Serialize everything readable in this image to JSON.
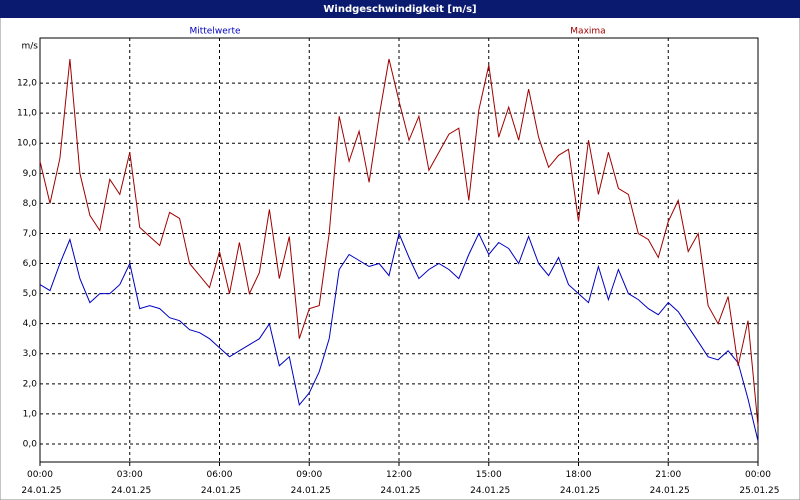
{
  "chart_data": {
    "type": "line",
    "title": "Windgeschwindigkeit [m/s]",
    "ylabel": "m/s",
    "x": [
      0,
      20,
      40,
      60,
      80,
      100,
      120,
      140,
      160,
      180,
      200,
      220,
      240,
      260,
      280,
      300,
      320,
      340,
      360,
      380,
      400,
      420,
      440,
      460,
      480,
      500,
      520,
      540,
      560,
      580,
      600,
      620,
      640,
      660,
      680,
      700,
      720,
      740,
      760,
      780,
      800,
      820,
      840,
      860,
      880,
      900,
      920,
      940,
      960,
      980,
      1000,
      1020,
      1040,
      1060,
      1080,
      1100,
      1120,
      1140,
      1160,
      1180,
      1200,
      1220,
      1240,
      1260,
      1280,
      1300,
      1320,
      1340,
      1360,
      1380,
      1400,
      1420,
      1440
    ],
    "series": [
      {
        "name": "Mittelwerte",
        "color": "#0000c0",
        "values": [
          5.3,
          5.1,
          6.0,
          6.8,
          5.5,
          4.7,
          5.0,
          5.0,
          5.3,
          6.0,
          4.5,
          4.6,
          4.5,
          4.2,
          4.1,
          3.8,
          3.7,
          3.5,
          3.2,
          2.9,
          3.1,
          3.3,
          3.5,
          4.0,
          2.6,
          2.9,
          1.3,
          1.7,
          2.4,
          3.5,
          5.8,
          6.3,
          6.1,
          5.9,
          6.0,
          5.6,
          7.0,
          6.2,
          5.5,
          5.8,
          6.0,
          5.8,
          5.5,
          6.3,
          7.0,
          6.3,
          6.7,
          6.5,
          6.0,
          6.9,
          6.0,
          5.6,
          6.2,
          5.3,
          5.0,
          4.7,
          5.9,
          4.8,
          5.8,
          5.0,
          4.8,
          4.5,
          4.3,
          4.7,
          4.4,
          3.9,
          3.4,
          2.9,
          2.8,
          3.1,
          2.7,
          1.5,
          0.1
        ]
      },
      {
        "name": "Maxima",
        "color": "#a00000",
        "values": [
          9.4,
          8.0,
          9.5,
          12.8,
          9.0,
          7.6,
          7.1,
          8.8,
          8.3,
          9.7,
          7.2,
          6.9,
          6.6,
          7.7,
          7.5,
          6.0,
          5.6,
          5.2,
          6.4,
          5.0,
          6.7,
          5.0,
          5.7,
          7.8,
          5.5,
          6.9,
          3.5,
          4.5,
          4.6,
          7.0,
          10.9,
          9.4,
          10.4,
          8.7,
          10.9,
          12.8,
          11.4,
          10.1,
          10.9,
          9.1,
          9.7,
          10.3,
          10.5,
          8.1,
          11.1,
          12.6,
          10.2,
          11.2,
          10.1,
          11.8,
          10.2,
          9.2,
          9.6,
          9.8,
          7.4,
          10.1,
          8.3,
          9.7,
          8.5,
          8.3,
          7.0,
          6.8,
          6.2,
          7.4,
          8.1,
          6.4,
          7.0,
          4.6,
          4.0,
          4.9,
          2.6,
          4.1,
          0.6
        ]
      }
    ],
    "xlim": [
      0,
      1440
    ],
    "xticks": [
      {
        "value": 0,
        "label": "00:00 24.01.25"
      },
      {
        "value": 180,
        "label": "03:00 24.01.25"
      },
      {
        "value": 360,
        "label": "06:00 24.01.25"
      },
      {
        "value": 540,
        "label": "09:00 24.01.25"
      },
      {
        "value": 720,
        "label": "12:00 24.01.25"
      },
      {
        "value": 900,
        "label": "15:00 24.01.25"
      },
      {
        "value": 1080,
        "label": "18:00 24.01.25"
      },
      {
        "value": 1260,
        "label": "21:00 24.01.25"
      },
      {
        "value": 1440,
        "label": "00:00 25.01.25"
      }
    ],
    "ylim": [
      -0.6,
      13.5
    ],
    "yticks": [
      {
        "value": 0,
        "label": "0,0"
      },
      {
        "value": 1,
        "label": "1,0"
      },
      {
        "value": 2,
        "label": "2,0"
      },
      {
        "value": 3,
        "label": "3,0"
      },
      {
        "value": 4,
        "label": "4,0"
      },
      {
        "value": 5,
        "label": "5,0"
      },
      {
        "value": 6,
        "label": "6,0"
      },
      {
        "value": 7,
        "label": "7,0"
      },
      {
        "value": 8,
        "label": "8,0"
      },
      {
        "value": 9,
        "label": "9,0"
      },
      {
        "value": 10,
        "label": "10,0"
      },
      {
        "value": 11,
        "label": "11,0"
      },
      {
        "value": 12,
        "label": "12,0"
      }
    ],
    "grid": true
  }
}
